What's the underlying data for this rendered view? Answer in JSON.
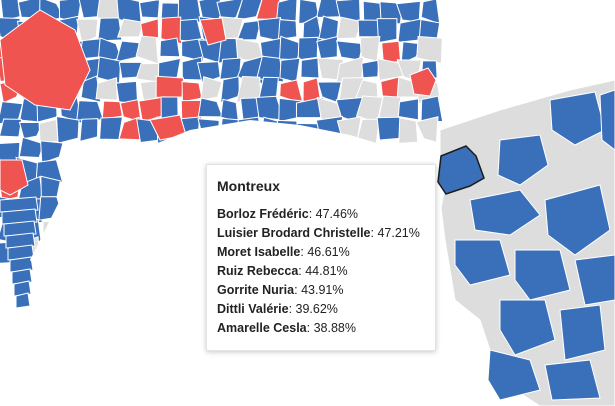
{
  "colors": {
    "blue": "#3a70b9",
    "red": "#ef5450",
    "gray": "#dddddd",
    "lake": "#ffffff",
    "border": "#ffffff",
    "selected_outline": "#1c1c1c"
  },
  "tooltip": {
    "title": "Montreux",
    "candidates": [
      {
        "name": "Borloz Frédéric",
        "value": "47.46%"
      },
      {
        "name": "Luisier Brodard Christelle",
        "value": "47.21%"
      },
      {
        "name": "Moret Isabelle",
        "value": "46.61%"
      },
      {
        "name": "Ruiz Rebecca",
        "value": "44.81%"
      },
      {
        "name": "Gorrite Nuria",
        "value": "43.91%"
      },
      {
        "name": "Dittli Valérie",
        "value": "39.62%"
      },
      {
        "name": "Amarelle Cesla",
        "value": "38.88%"
      }
    ]
  }
}
